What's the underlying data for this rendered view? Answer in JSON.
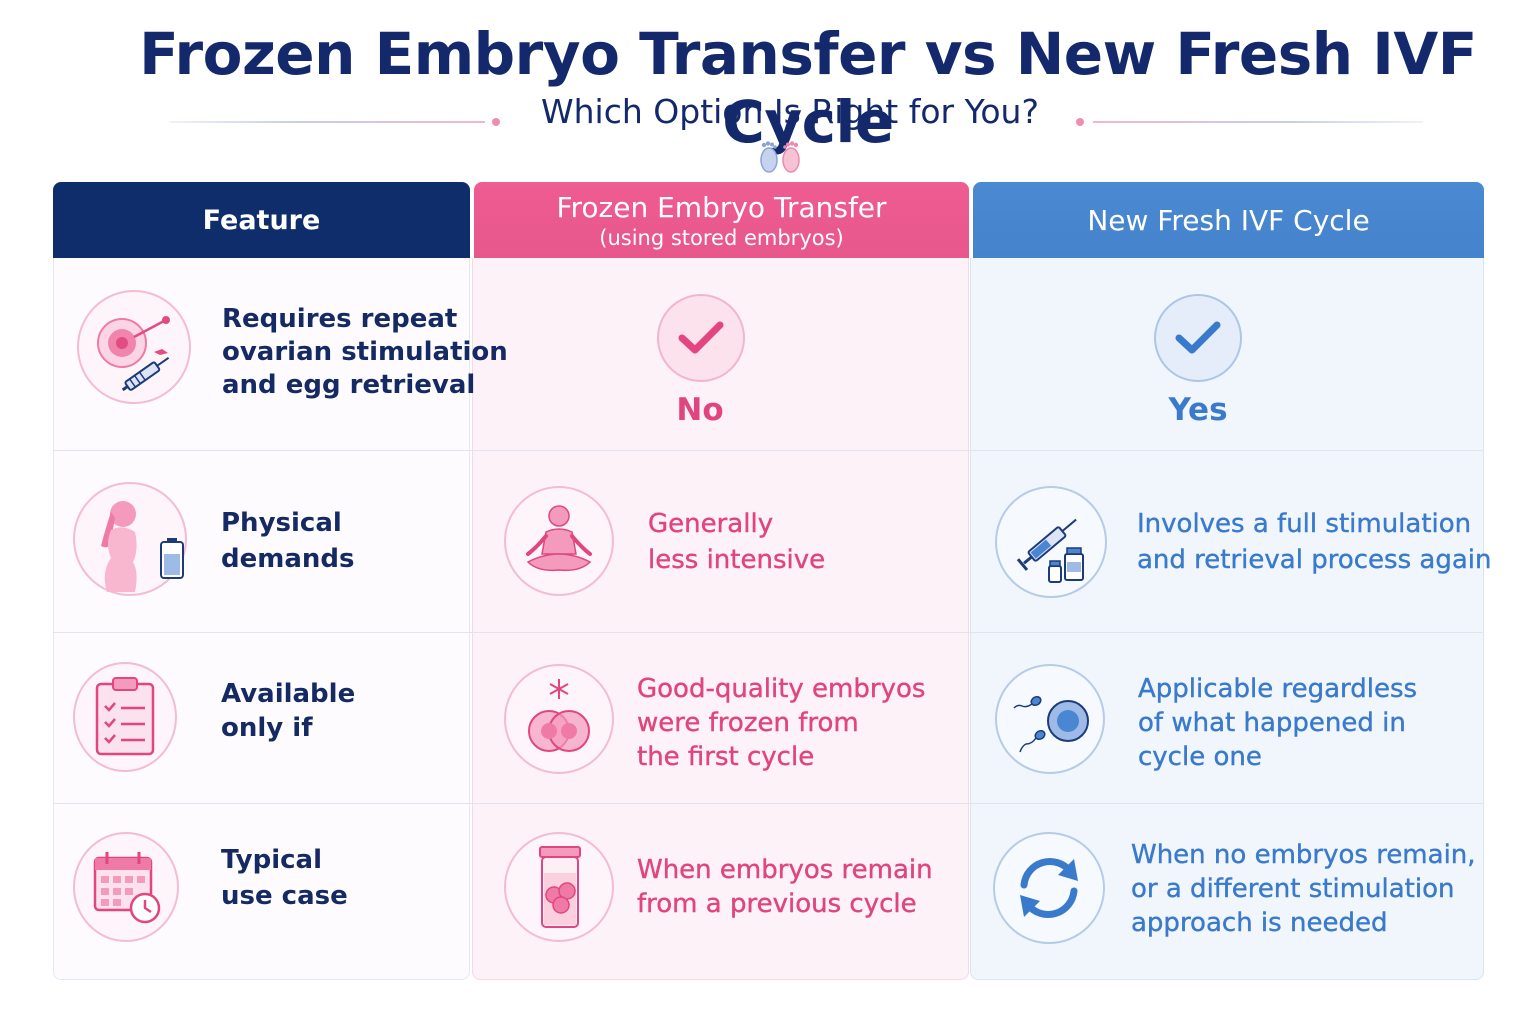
{
  "header": {
    "title": "Frozen Embryo Transfer vs New Fresh IVF Cycle",
    "subtitle": "Which Option Is Right for You?"
  },
  "columns": {
    "feature": {
      "label": "Feature"
    },
    "frozen": {
      "label": "Frozen Embryo Transfer",
      "sublabel": "(using stored embryos)"
    },
    "fresh": {
      "label": "New Fresh IVF Cycle"
    }
  },
  "rows": [
    {
      "feature": "Requires repeat\novarian stimulation\nand egg retrieval",
      "feature_icon": "egg-retrieval-icon",
      "frozen": "No",
      "frozen_icon": "check-icon",
      "fresh": "Yes",
      "fresh_icon": "check-icon"
    },
    {
      "feature": "Physical\ndemands",
      "feature_icon": "woman-battery-icon",
      "frozen": "Generally\nless intensive",
      "frozen_icon": "meditation-icon",
      "fresh": "Involves a full stimulation\nand retrieval process again",
      "fresh_icon": "syringe-vials-icon"
    },
    {
      "feature": "Available\nonly if",
      "feature_icon": "clipboard-checklist-icon",
      "frozen": "Good-quality embryos\nwere frozen from\nthe first cycle",
      "frozen_icon": "frozen-embryo-icon",
      "fresh": "Applicable regardless\nof what happened in\ncycle one",
      "fresh_icon": "sperm-egg-icon"
    },
    {
      "feature": "Typical\nuse case",
      "feature_icon": "calendar-clock-icon",
      "frozen": "When embryos remain\nfrom a previous cycle",
      "frozen_icon": "embryo-jar-icon",
      "fresh": "When no embryos remain,\nor a different stimulation\napproach is needed",
      "fresh_icon": "refresh-cycle-icon"
    }
  ],
  "colors": {
    "navy": "#0f2d6b",
    "pink": "#e8578b",
    "blue": "#4583cc"
  }
}
